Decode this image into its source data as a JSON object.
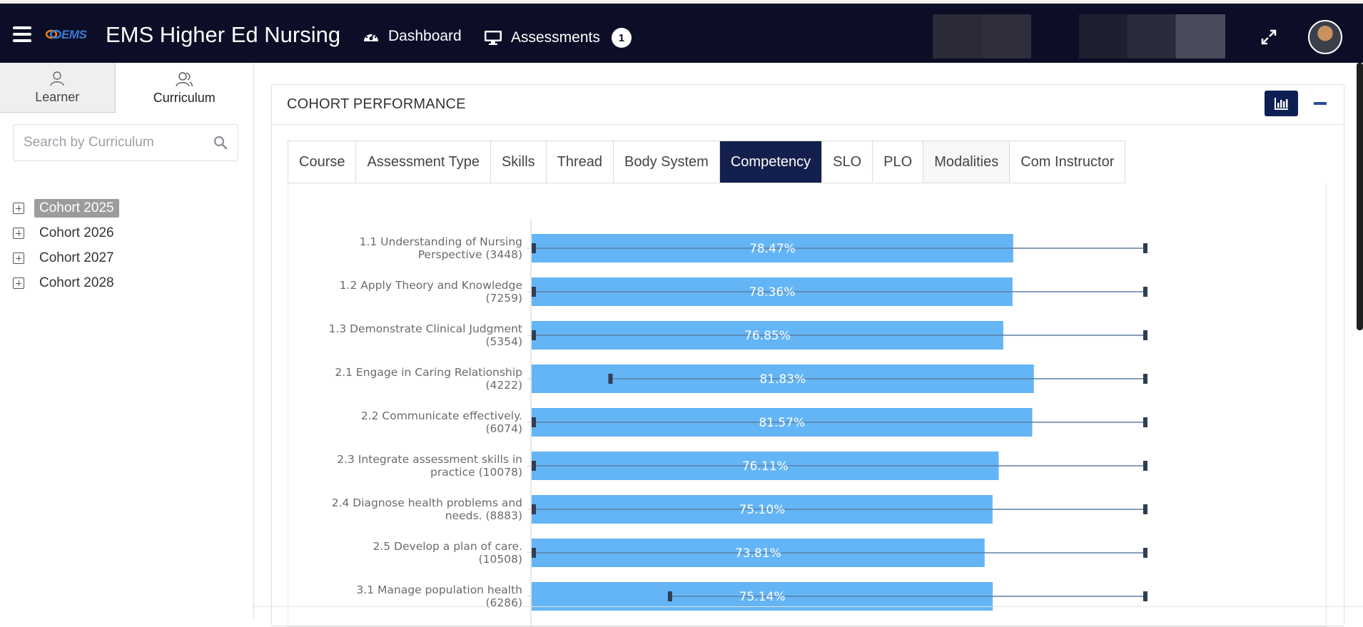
{
  "app": {
    "logo_text": "EMS",
    "title": "EMS Higher Ed Nursing"
  },
  "nav": {
    "dashboard_label": "Dashboard",
    "assessments_label": "Assessments",
    "assessments_badge": "1"
  },
  "sidebar": {
    "tabs": [
      {
        "label": "Learner",
        "icon": "person-icon",
        "active": false
      },
      {
        "label": "Curriculum",
        "icon": "people-icon",
        "active": true
      }
    ],
    "search_placeholder": "Search by Curriculum",
    "tree": [
      {
        "label": "Cohort 2025",
        "selected": true
      },
      {
        "label": "Cohort 2026",
        "selected": false
      },
      {
        "label": "Cohort 2027",
        "selected": false
      },
      {
        "label": "Cohort 2028",
        "selected": false
      }
    ]
  },
  "panel": {
    "title": "COHORT PERFORMANCE",
    "tabs": [
      {
        "label": "Course"
      },
      {
        "label": "Assessment Type"
      },
      {
        "label": "Skills"
      },
      {
        "label": "Thread"
      },
      {
        "label": "Body System"
      },
      {
        "label": "Competency",
        "active": true
      },
      {
        "label": "SLO"
      },
      {
        "label": "PLO"
      },
      {
        "label": "Modalities"
      },
      {
        "label": "Com Instructor"
      }
    ]
  },
  "colors": {
    "topbar": "#0b0e26",
    "active_tab": "#13204d",
    "bar": "#64b5f6",
    "range_line": "#5b7fa6",
    "range_cap": "#2f3e52"
  },
  "chart_data": {
    "type": "bar",
    "orientation": "horizontal",
    "xlim": [
      0,
      100
    ],
    "rows": [
      {
        "label_lines": [
          "1.1 Understanding of Nursing",
          "Perspective (3448)"
        ],
        "value": 78.47,
        "display": "78.47%",
        "min": 0,
        "max": 100
      },
      {
        "label_lines": [
          "1.2 Apply Theory and Knowledge",
          "(7259)"
        ],
        "value": 78.36,
        "display": "78.36%",
        "min": 0,
        "max": 100
      },
      {
        "label_lines": [
          "1.3 Demonstrate Clinical Judgment",
          "(5354)"
        ],
        "value": 76.85,
        "display": "76.85%",
        "min": 0,
        "max": 100
      },
      {
        "label_lines": [
          "2.1 Engage in Caring Relationship",
          "(4222)"
        ],
        "value": 81.83,
        "display": "81.83%",
        "min": 12.5,
        "max": 100
      },
      {
        "label_lines": [
          "2.2 Communicate effectively.",
          "(6074)"
        ],
        "value": 81.57,
        "display": "81.57%",
        "min": 0,
        "max": 100
      },
      {
        "label_lines": [
          "2.3 Integrate assessment skills in",
          "practice (10078)"
        ],
        "value": 76.11,
        "display": "76.11%",
        "min": 0,
        "max": 100
      },
      {
        "label_lines": [
          "2.4 Diagnose health problems and",
          "needs. (8883)"
        ],
        "value": 75.1,
        "display": "75.10%",
        "min": 0,
        "max": 100
      },
      {
        "label_lines": [
          "2.5 Develop a plan of care.",
          "(10508)"
        ],
        "value": 73.81,
        "display": "73.81%",
        "min": 0,
        "max": 100
      },
      {
        "label_lines": [
          "3.1 Manage population health",
          "(6286)"
        ],
        "value": 75.14,
        "display": "75.14%",
        "min": 22.2,
        "max": 100
      }
    ]
  }
}
